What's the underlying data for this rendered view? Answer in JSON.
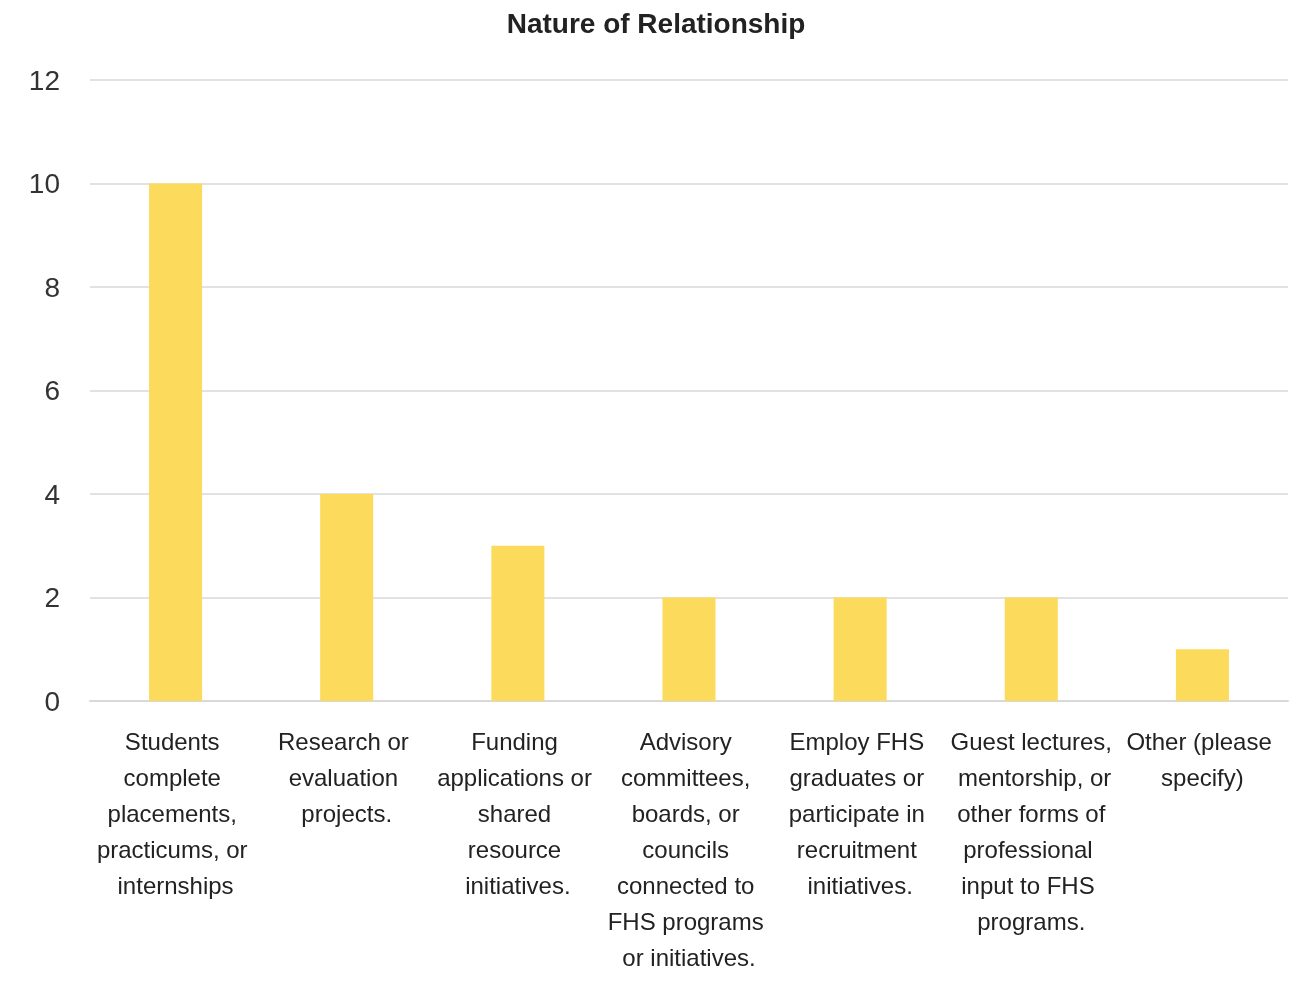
{
  "chart_data": {
    "type": "bar",
    "title": "Nature of Relationship",
    "categories": [
      "Students complete placements, practicums, or internships",
      "Research or evaluation projects.",
      "Funding applications or shared resource initiatives.",
      "Advisory committees, boards, or councils connected to FHS programs or initiatives.",
      "Employ FHS graduates or participate in recruitment initiatives.",
      "Guest lectures, mentorship, or other forms of professional input to FHS programs.",
      "Other (please specify)"
    ],
    "values": [
      10,
      4,
      3,
      2,
      2,
      2,
      1
    ],
    "color": "#fcdb5c",
    "ylim": [
      0,
      12
    ],
    "yticks": [
      0,
      2,
      4,
      6,
      8,
      10,
      12
    ],
    "grid": "y"
  }
}
